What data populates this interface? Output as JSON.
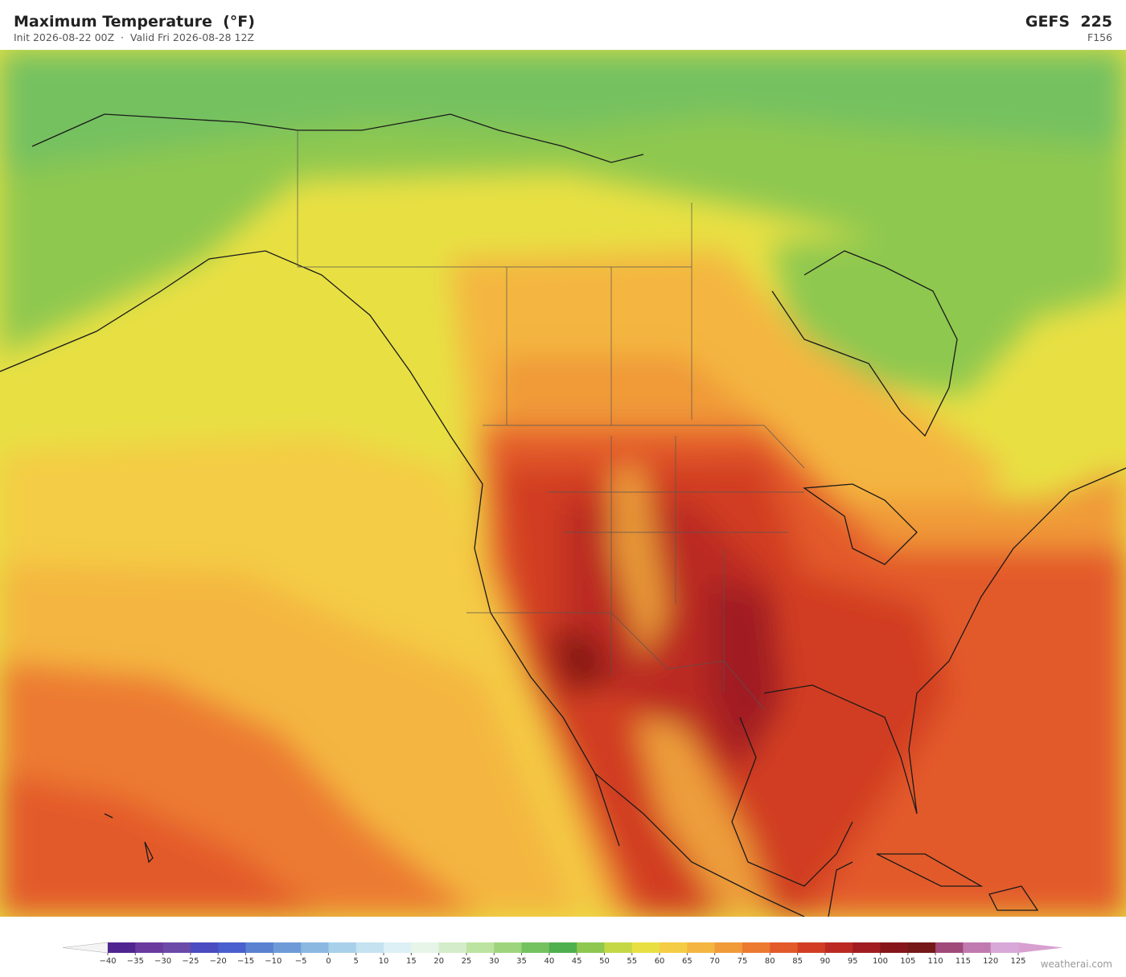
{
  "header": {
    "title": "Maximum Temperature  (°F)",
    "subtitle": "Init 2026-08-22 00Z  ·  Valid Fri 2026-08-28 12Z",
    "model": "GEFS  225",
    "forecast_hour": "F156"
  },
  "colorbar": {
    "ticks": [
      {
        "value": -40,
        "label": "−40"
      },
      {
        "value": -35,
        "label": "−35"
      },
      {
        "value": -30,
        "label": "−30"
      },
      {
        "value": -25,
        "label": "−25"
      },
      {
        "value": -20,
        "label": "−20"
      },
      {
        "value": -15,
        "label": "−15"
      },
      {
        "value": -10,
        "label": "−10"
      },
      {
        "value": -5,
        "label": "−5"
      },
      0,
      5,
      10,
      15,
      20,
      25,
      30,
      35,
      40,
      45,
      50,
      55,
      60,
      65,
      70,
      75,
      80,
      85,
      90,
      95,
      100,
      105,
      110,
      115,
      120,
      125
    ],
    "colors": [
      "#4f2590",
      "#6a3a9e",
      "#6b4aa8",
      "#4a4cc0",
      "#4a5fcf",
      "#5a82d0",
      "#6e9bd8",
      "#8ab8e0",
      "#a8d0ea",
      "#c4e2f0",
      "#dcf0f5",
      "#e6f5e8",
      "#d4ecca",
      "#bde3a0",
      "#9ed47c",
      "#74c160",
      "#4fb04f",
      "#8ec850",
      "#c4d846",
      "#e8e043",
      "#f4cc45",
      "#f4b640",
      "#f09a38",
      "#ec7a30",
      "#e35a2a",
      "#d13e24",
      "#bb2a22",
      "#a01c20",
      "#861619",
      "#741818",
      "#a04a7a",
      "#c07ab0",
      "#d8a8d8"
    ],
    "extend_colors": [
      "#f4f4f4",
      "#d8a0d0"
    ]
  },
  "footer": {
    "credit": "weatherai.com"
  }
}
